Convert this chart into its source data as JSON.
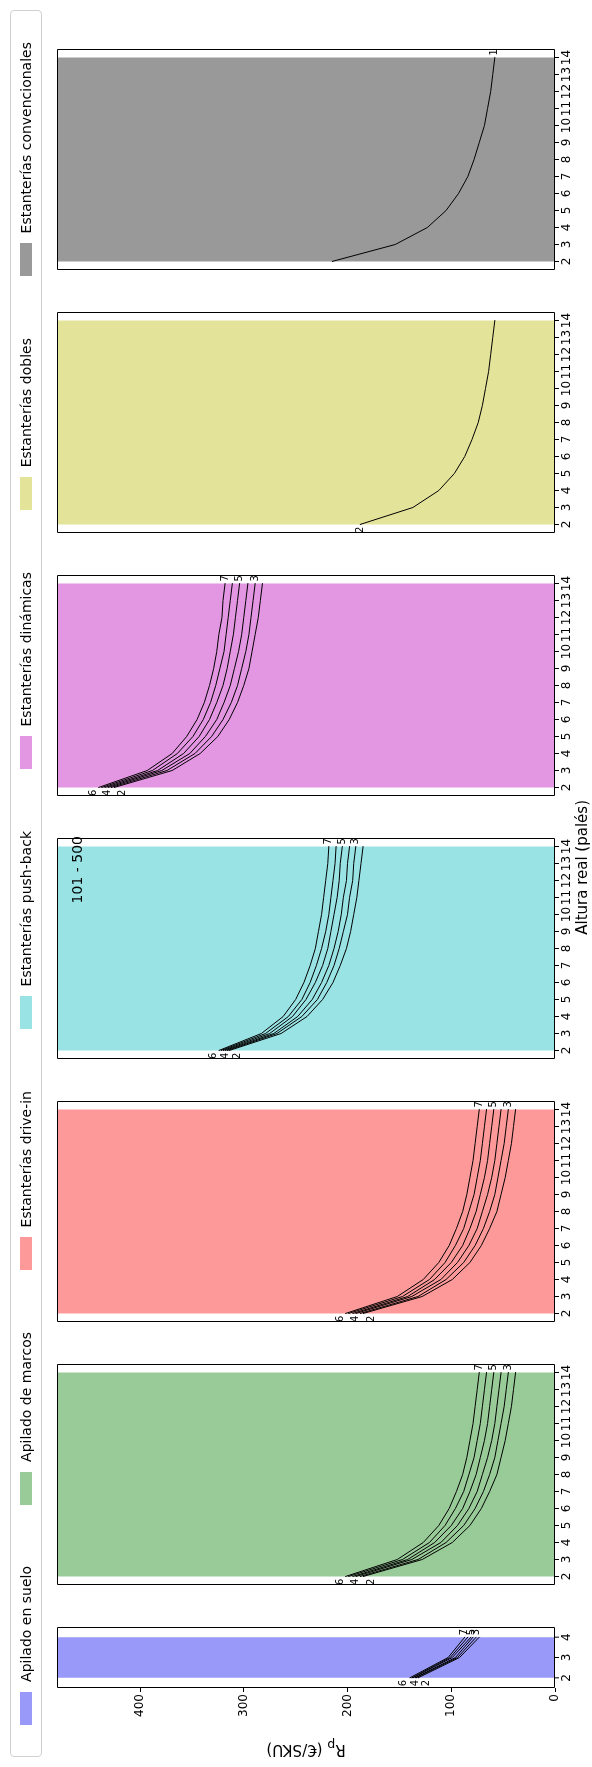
{
  "chart_data": [
    {
      "type": "line",
      "xlabel": "R$_{p}$ (€/SKU)",
      "xlim": [
        480,
        0
      ],
      "xticks": [
        0,
        100,
        200,
        300,
        400
      ],
      "ylim": [
        1.5,
        4.5
      ],
      "yticks": [
        2,
        3,
        4
      ],
      "legend": "top",
      "bands": [
        {
          "axis": "y",
          "from": 2,
          "to": 4,
          "label": "Apilado en suelo",
          "color": "#9999f9"
        }
      ],
      "series": [
        {
          "name": "7",
          "color": "#000000",
          "x": [
            140,
            103,
            87
          ],
          "values": [
            2,
            3,
            4
          ]
        },
        {
          "name": "6",
          "color": "#000000",
          "x": [
            138,
            101,
            84
          ],
          "values": [
            2,
            3,
            4
          ]
        },
        {
          "name": "5",
          "color": "#000000",
          "x": [
            137,
            99,
            81
          ],
          "values": [
            2,
            3,
            4
          ]
        },
        {
          "name": "4",
          "color": "#000000",
          "x": [
            135,
            96,
            79
          ],
          "values": [
            2,
            3,
            4
          ]
        },
        {
          "name": "3",
          "color": "#000000",
          "x": [
            134,
            94,
            76
          ],
          "values": [
            2,
            3,
            4
          ]
        },
        {
          "name": "2",
          "color": "#000000",
          "x": [
            132,
            92,
            73
          ],
          "values": [
            2,
            3,
            4
          ]
        }
      ]
    },
    {
      "type": "line",
      "xlim": [
        480,
        0
      ],
      "ylim": [
        1.5,
        14.5
      ],
      "yticks": [
        2,
        3,
        4,
        5,
        6,
        7,
        8,
        9,
        10,
        11,
        12,
        13,
        14
      ],
      "tick_labels": "y",
      "legend": "top",
      "bands": [
        {
          "axis": "y",
          "from": 2,
          "to": 14,
          "label": "Apilado de marcos",
          "color": "#99cb99"
        }
      ],
      "series": [
        {
          "name": "7",
          "color": "#000000",
          "x": [
            202,
            152,
            127,
            112,
            102,
            95,
            89,
            85,
            82,
            79,
            77,
            75,
            73
          ],
          "values": [
            2,
            3,
            4,
            5,
            6,
            7,
            8,
            9,
            10,
            11,
            12,
            13,
            14
          ]
        },
        {
          "name": "6",
          "color": "#000000",
          "x": [
            199,
            147,
            121,
            106,
            96,
            88,
            83,
            78,
            75,
            72,
            70,
            68,
            66
          ],
          "values": [
            2,
            3,
            4,
            5,
            6,
            7,
            8,
            9,
            10,
            11,
            12,
            13,
            14
          ]
        },
        {
          "name": "5",
          "color": "#000000",
          "x": [
            195,
            142,
            116,
            100,
            89,
            82,
            76,
            72,
            68,
            65,
            63,
            61,
            59
          ],
          "values": [
            2,
            3,
            4,
            5,
            6,
            7,
            8,
            9,
            10,
            11,
            12,
            13,
            14
          ]
        },
        {
          "name": "4",
          "color": "#000000",
          "x": [
            192,
            138,
            110,
            94,
            83,
            75,
            70,
            65,
            61,
            58,
            56,
            54,
            52
          ],
          "values": [
            2,
            3,
            4,
            5,
            6,
            7,
            8,
            9,
            10,
            11,
            12,
            13,
            14
          ]
        },
        {
          "name": "3",
          "color": "#000000",
          "x": [
            188,
            132,
            105,
            88,
            77,
            69,
            63,
            58,
            55,
            52,
            49,
            47,
            45
          ],
          "values": [
            2,
            3,
            4,
            5,
            6,
            7,
            8,
            9,
            10,
            11,
            12,
            13,
            14
          ]
        },
        {
          "name": "2",
          "color": "#000000",
          "x": [
            185,
            128,
            99,
            82,
            71,
            63,
            56,
            52,
            48,
            45,
            42,
            40,
            38
          ],
          "values": [
            2,
            3,
            4,
            5,
            6,
            7,
            8,
            9,
            10,
            11,
            12,
            13,
            14
          ]
        }
      ]
    },
    {
      "type": "line",
      "xlim": [
        480,
        0
      ],
      "ylim": [
        1.5,
        14.5
      ],
      "yticks": [
        2,
        3,
        4,
        5,
        6,
        7,
        8,
        9,
        10,
        11,
        12,
        13,
        14
      ],
      "tick_labels": "y",
      "legend": "top",
      "bands": [
        {
          "axis": "y",
          "from": 2,
          "to": 14,
          "label": "Estanterías drive-in",
          "color": "#fd9999"
        }
      ],
      "series": [
        {
          "name": "7",
          "color": "#000000",
          "x": [
            202,
            152,
            127,
            112,
            102,
            95,
            89,
            85,
            82,
            79,
            77,
            75,
            73
          ],
          "values": [
            2,
            3,
            4,
            5,
            6,
            7,
            8,
            9,
            10,
            11,
            12,
            13,
            14
          ]
        },
        {
          "name": "6",
          "color": "#000000",
          "x": [
            199,
            147,
            121,
            106,
            96,
            88,
            83,
            78,
            75,
            72,
            70,
            68,
            66
          ],
          "values": [
            2,
            3,
            4,
            5,
            6,
            7,
            8,
            9,
            10,
            11,
            12,
            13,
            14
          ]
        },
        {
          "name": "5",
          "color": "#000000",
          "x": [
            195,
            142,
            116,
            100,
            89,
            82,
            76,
            72,
            68,
            65,
            63,
            61,
            59
          ],
          "values": [
            2,
            3,
            4,
            5,
            6,
            7,
            8,
            9,
            10,
            11,
            12,
            13,
            14
          ]
        },
        {
          "name": "4",
          "color": "#000000",
          "x": [
            192,
            138,
            110,
            94,
            83,
            75,
            70,
            65,
            61,
            58,
            56,
            54,
            52
          ],
          "values": [
            2,
            3,
            4,
            5,
            6,
            7,
            8,
            9,
            10,
            11,
            12,
            13,
            14
          ]
        },
        {
          "name": "3",
          "color": "#000000",
          "x": [
            188,
            132,
            105,
            88,
            77,
            69,
            63,
            58,
            55,
            52,
            49,
            47,
            45
          ],
          "values": [
            2,
            3,
            4,
            5,
            6,
            7,
            8,
            9,
            10,
            11,
            12,
            13,
            14
          ]
        },
        {
          "name": "2",
          "color": "#000000",
          "x": [
            185,
            128,
            99,
            82,
            71,
            63,
            56,
            52,
            48,
            45,
            42,
            40,
            38
          ],
          "values": [
            2,
            3,
            4,
            5,
            6,
            7,
            8,
            9,
            10,
            11,
            12,
            13,
            14
          ]
        }
      ]
    },
    {
      "type": "line",
      "ylabel": "Altura real (palés)",
      "annotations": [
        "101 - 500"
      ],
      "xlim": [
        480,
        0
      ],
      "ylim": [
        1.5,
        14.5
      ],
      "yticks": [
        2,
        3,
        4,
        5,
        6,
        7,
        8,
        9,
        10,
        11,
        12,
        13,
        14
      ],
      "tick_labels": "y",
      "legend": "top",
      "bands": [
        {
          "axis": "y",
          "from": 2,
          "to": 14,
          "label": "Estanterías push-back",
          "color": "#99e3e5"
        }
      ],
      "series": [
        {
          "name": "7",
          "color": "#000000",
          "x": [
            324,
            283,
            262,
            250,
            242,
            236,
            231,
            228,
            225,
            223,
            221,
            219,
            218
          ],
          "values": [
            2,
            3,
            4,
            5,
            6,
            7,
            8,
            9,
            10,
            11,
            12,
            13,
            14
          ]
        },
        {
          "name": "6",
          "color": "#000000",
          "x": [
            322,
            279,
            257,
            244,
            236,
            230,
            225,
            221,
            218,
            216,
            214,
            212,
            211
          ],
          "values": [
            2,
            3,
            4,
            5,
            6,
            7,
            8,
            9,
            10,
            11,
            12,
            13,
            14
          ]
        },
        {
          "name": "5",
          "color": "#000000",
          "x": [
            320,
            275,
            253,
            240,
            231,
            224,
            219,
            216,
            213,
            210,
            208,
            207,
            205
          ],
          "values": [
            2,
            3,
            4,
            5,
            6,
            7,
            8,
            9,
            10,
            11,
            12,
            13,
            14
          ]
        },
        {
          "name": "4",
          "color": "#000000",
          "x": [
            318,
            271,
            248,
            234,
            225,
            218,
            213,
            209,
            206,
            204,
            201,
            200,
            198
          ],
          "values": [
            2,
            3,
            4,
            5,
            6,
            7,
            8,
            9,
            10,
            11,
            12,
            13,
            14
          ]
        },
        {
          "name": "3",
          "color": "#000000",
          "x": [
            316,
            268,
            244,
            229,
            220,
            213,
            208,
            204,
            200,
            198,
            195,
            194,
            192
          ],
          "values": [
            2,
            3,
            4,
            5,
            6,
            7,
            8,
            9,
            10,
            11,
            12,
            13,
            14
          ]
        },
        {
          "name": "2",
          "color": "#000000",
          "x": [
            314,
            264,
            239,
            224,
            214,
            207,
            201,
            197,
            194,
            191,
            189,
            187,
            185
          ],
          "values": [
            2,
            3,
            4,
            5,
            6,
            7,
            8,
            9,
            10,
            11,
            12,
            13,
            14
          ]
        }
      ]
    },
    {
      "type": "line",
      "xlim": [
        480,
        0
      ],
      "ylim": [
        1.5,
        14.5
      ],
      "yticks": [
        2,
        3,
        4,
        5,
        6,
        7,
        8,
        9,
        10,
        11,
        12,
        13,
        14
      ],
      "tick_labels": "y",
      "legend": "top",
      "bands": [
        {
          "axis": "y",
          "from": 2,
          "to": 14,
          "label": "Estanterías dinámicas",
          "color": "#e396e2"
        }
      ],
      "series": [
        {
          "name": "7",
          "color": "#000000",
          "x": [
            440,
            393,
            369,
            355,
            345,
            338,
            333,
            329,
            326,
            324,
            321,
            320,
            318
          ],
          "values": [
            2,
            3,
            4,
            5,
            6,
            7,
            8,
            9,
            10,
            11,
            12,
            13,
            14
          ]
        },
        {
          "name": "6",
          "color": "#000000",
          "x": [
            437,
            388,
            364,
            349,
            339,
            332,
            327,
            323,
            319,
            317,
            315,
            313,
            311
          ],
          "values": [
            2,
            3,
            4,
            5,
            6,
            7,
            8,
            9,
            10,
            11,
            12,
            13,
            14
          ]
        },
        {
          "name": "5",
          "color": "#000000",
          "x": [
            434,
            383,
            358,
            343,
            333,
            326,
            320,
            316,
            313,
            310,
            308,
            306,
            304
          ],
          "values": [
            2,
            3,
            4,
            5,
            6,
            7,
            8,
            9,
            10,
            11,
            12,
            13,
            14
          ]
        },
        {
          "name": "4",
          "color": "#000000",
          "x": [
            431,
            379,
            352,
            337,
            326,
            319,
            313,
            309,
            305,
            302,
            300,
            298,
            296
          ],
          "values": [
            2,
            3,
            4,
            5,
            6,
            7,
            8,
            9,
            10,
            11,
            12,
            13,
            14
          ]
        },
        {
          "name": "3",
          "color": "#000000",
          "x": [
            428,
            374,
            347,
            331,
            320,
            312,
            306,
            302,
            298,
            295,
            293,
            291,
            289
          ],
          "values": [
            2,
            3,
            4,
            5,
            6,
            7,
            8,
            9,
            10,
            11,
            12,
            13,
            14
          ]
        },
        {
          "name": "2",
          "color": "#000000",
          "x": [
            425,
            369,
            342,
            325,
            314,
            306,
            300,
            295,
            292,
            289,
            286,
            284,
            282
          ],
          "values": [
            2,
            3,
            4,
            5,
            6,
            7,
            8,
            9,
            10,
            11,
            12,
            13,
            14
          ]
        }
      ]
    },
    {
      "type": "line",
      "annotations": [
        {
          "text": "2",
          "x": 188,
          "y": 2
        }
      ],
      "xlim": [
        480,
        0
      ],
      "ylim": [
        1.5,
        14.5
      ],
      "yticks": [
        2,
        3,
        4,
        5,
        6,
        7,
        8,
        9,
        10,
        11,
        12,
        13,
        14
      ],
      "tick_labels": "y",
      "legend": "top",
      "bands": [
        {
          "axis": "y",
          "from": 2,
          "to": 14,
          "label": "Estanterías dobles",
          "color": "#e3e39a"
        }
      ],
      "series": [
        {
          "color": "#000000",
          "x": [
            188,
            137,
            112,
            97,
            87,
            80,
            74,
            70,
            67,
            64,
            62,
            60,
            58
          ],
          "values": [
            2,
            3,
            4,
            5,
            6,
            7,
            8,
            9,
            10,
            11,
            12,
            13,
            14
          ]
        }
      ]
    },
    {
      "type": "line",
      "xlim": [
        480,
        0
      ],
      "ylim": [
        1.5,
        14.5
      ],
      "yticks": [
        2,
        3,
        4,
        5,
        6,
        7,
        8,
        9,
        10,
        11,
        12,
        13,
        14
      ],
      "tick_labels": "y",
      "legend": "top",
      "bands": [
        {
          "axis": "y",
          "from": 2,
          "to": 14,
          "label": "Estanterías convencionales",
          "color": "#999999"
        }
      ],
      "series": [
        {
          "name": "1",
          "color": "#000000",
          "x": [
            215,
            154,
            123,
            105,
            93,
            84,
            78,
            73,
            68,
            65,
            62,
            60,
            58
          ],
          "values": [
            2,
            3,
            4,
            5,
            6,
            7,
            8,
            9,
            10,
            11,
            12,
            13,
            14
          ]
        }
      ]
    }
  ]
}
